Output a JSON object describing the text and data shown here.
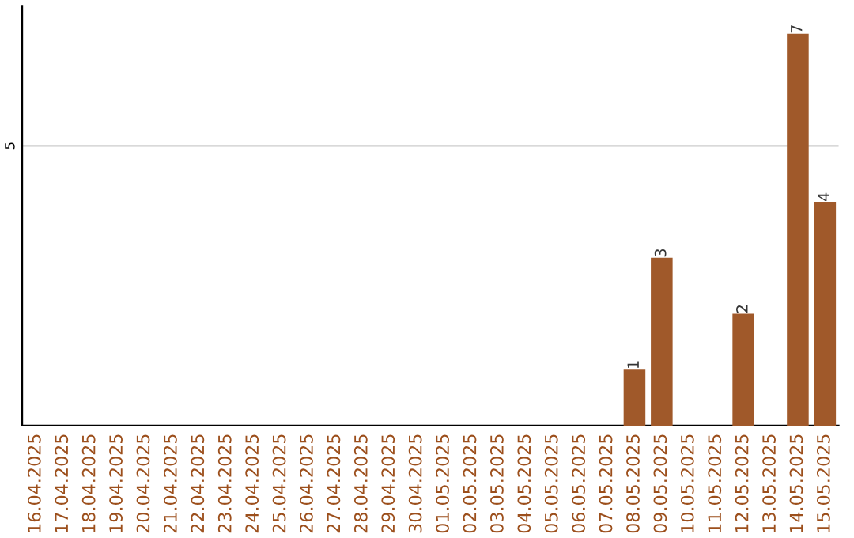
{
  "chart_data": {
    "type": "bar",
    "categories": [
      "16.04.2025",
      "17.04.2025",
      "18.04.2025",
      "19.04.2025",
      "20.04.2025",
      "21.04.2025",
      "22.04.2025",
      "23.04.2025",
      "24.04.2025",
      "25.04.2025",
      "26.04.2025",
      "27.04.2025",
      "28.04.2025",
      "29.04.2025",
      "30.04.2025",
      "01.05.2025",
      "02.05.2025",
      "03.05.2025",
      "04.05.2025",
      "05.05.2025",
      "06.05.2025",
      "07.05.2025",
      "08.05.2025",
      "09.05.2025",
      "10.05.2025",
      "11.05.2025",
      "12.05.2025",
      "13.05.2025",
      "14.05.2025",
      "15.05.2025"
    ],
    "values": [
      null,
      null,
      null,
      null,
      null,
      null,
      null,
      null,
      null,
      null,
      null,
      null,
      null,
      null,
      null,
      null,
      null,
      null,
      null,
      null,
      null,
      null,
      1,
      3,
      null,
      null,
      2,
      null,
      7,
      4
    ],
    "data_labels": true,
    "color": "#a0592a",
    "ylim": [
      0,
      7.5
    ],
    "ref_lines": [
      {
        "axis": "y",
        "value": 5,
        "label": "5",
        "color": "#cccccc"
      }
    ],
    "legend": false
  }
}
